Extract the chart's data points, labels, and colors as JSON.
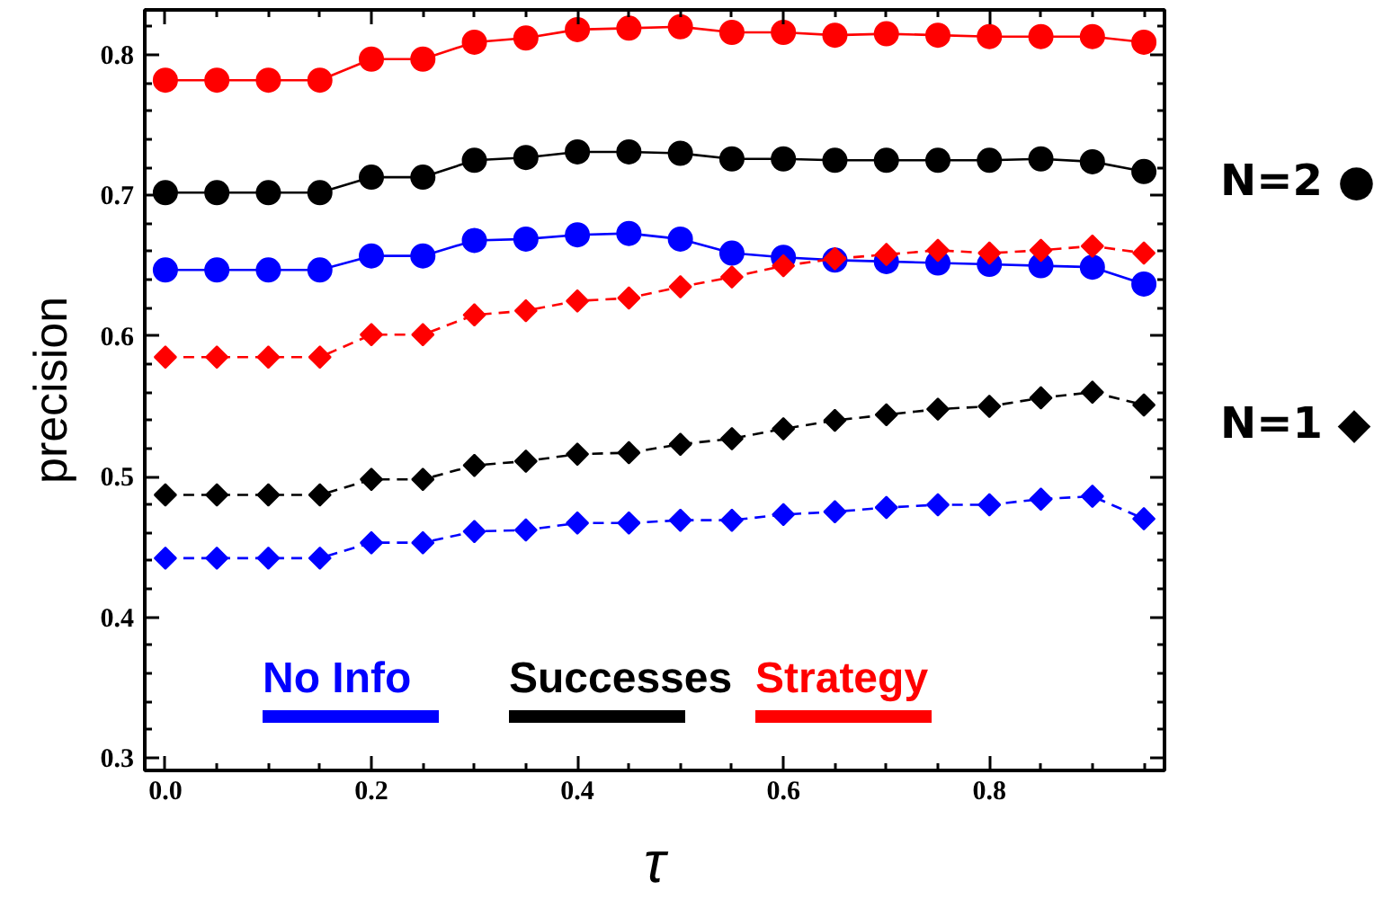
{
  "chart_data": {
    "type": "line",
    "xlabel": "τ",
    "ylabel": "precision",
    "x": [
      0,
      0.05,
      0.1,
      0.15,
      0.2,
      0.25,
      0.3,
      0.35,
      0.4,
      0.45,
      0.5,
      0.55,
      0.6,
      0.65,
      0.7,
      0.75,
      0.8,
      0.85,
      0.9,
      0.95
    ],
    "xlim": [
      -0.02,
      0.97
    ],
    "ylim": [
      0.291,
      0.832
    ],
    "xticks": [
      {
        "value": 0,
        "label": "0.0"
      },
      {
        "value": 0.05,
        "label": null
      },
      {
        "value": 0.1,
        "label": null
      },
      {
        "value": 0.15,
        "label": null
      },
      0.2,
      {
        "value": 0.25,
        "label": null
      },
      {
        "value": 0.3,
        "label": null
      },
      {
        "value": 0.35,
        "label": null
      },
      0.4,
      {
        "value": 0.45,
        "label": null
      },
      {
        "value": 0.5,
        "label": null
      },
      {
        "value": 0.55,
        "label": null
      },
      0.6,
      {
        "value": 0.65,
        "label": null
      },
      {
        "value": 0.7,
        "label": null
      },
      {
        "value": 0.75,
        "label": null
      },
      0.8,
      {
        "value": 0.85,
        "label": null
      },
      {
        "value": 0.9,
        "label": null
      },
      {
        "value": 0.95,
        "label": null
      }
    ],
    "yticks": [
      0.3,
      {
        "value": 0.32,
        "label": null
      },
      {
        "value": 0.34,
        "label": null
      },
      {
        "value": 0.36,
        "label": null
      },
      {
        "value": 0.38,
        "label": null
      },
      0.4,
      {
        "value": 0.42,
        "label": null
      },
      {
        "value": 0.44,
        "label": null
      },
      {
        "value": 0.46,
        "label": null
      },
      {
        "value": 0.48,
        "label": null
      },
      0.5,
      {
        "value": 0.52,
        "label": null
      },
      {
        "value": 0.54,
        "label": null
      },
      {
        "value": 0.56,
        "label": null
      },
      {
        "value": 0.58,
        "label": null
      },
      0.6,
      {
        "value": 0.62,
        "label": null
      },
      {
        "value": 0.64,
        "label": null
      },
      {
        "value": 0.66,
        "label": null
      },
      {
        "value": 0.68,
        "label": null
      },
      0.7,
      {
        "value": 0.72,
        "label": null
      },
      {
        "value": 0.74,
        "label": null
      },
      {
        "value": 0.76,
        "label": null
      },
      {
        "value": 0.78,
        "label": null
      },
      0.8,
      {
        "value": 0.82,
        "label": null
      }
    ],
    "legend": "bottom",
    "series": [
      {
        "name": "No Info",
        "color": "#0000ff",
        "marker": "circle",
        "line_style": "solid",
        "values": [
          0.647,
          0.647,
          0.647,
          0.647,
          0.657,
          0.657,
          0.668,
          0.669,
          0.672,
          0.673,
          0.669,
          0.659,
          0.656,
          0.654,
          0.653,
          0.652,
          0.651,
          0.65,
          0.649,
          0.637
        ]
      },
      {
        "name": "Successes",
        "color": "#000000",
        "marker": "circle",
        "line_style": "solid",
        "values": [
          0.702,
          0.702,
          0.702,
          0.702,
          0.713,
          0.713,
          0.725,
          0.727,
          0.731,
          0.731,
          0.73,
          0.726,
          0.726,
          0.725,
          0.725,
          0.725,
          0.725,
          0.726,
          0.724,
          0.717
        ]
      },
      {
        "name": "Strategy",
        "color": "#ff0000",
        "marker": "circle",
        "line_style": "solid",
        "values": [
          0.782,
          0.782,
          0.782,
          0.782,
          0.797,
          0.797,
          0.809,
          0.812,
          0.818,
          0.819,
          0.82,
          0.816,
          0.816,
          0.814,
          0.815,
          0.814,
          0.813,
          0.813,
          0.813,
          0.809
        ]
      },
      {
        "color": "#0000ff",
        "marker": "diamond",
        "line_style": "dashed",
        "values": [
          0.442,
          0.442,
          0.442,
          0.442,
          0.453,
          0.453,
          0.461,
          0.462,
          0.467,
          0.467,
          0.469,
          0.469,
          0.473,
          0.475,
          0.478,
          0.48,
          0.48,
          0.484,
          0.486,
          0.47
        ]
      },
      {
        "color": "#000000",
        "marker": "diamond",
        "line_style": "dashed",
        "values": [
          0.487,
          0.487,
          0.487,
          0.487,
          0.498,
          0.498,
          0.508,
          0.511,
          0.516,
          0.517,
          0.523,
          0.527,
          0.534,
          0.54,
          0.544,
          0.548,
          0.55,
          0.556,
          0.56,
          0.551
        ]
      },
      {
        "color": "#ff0000",
        "marker": "diamond",
        "line_style": "dashed",
        "values": [
          0.585,
          0.585,
          0.585,
          0.585,
          0.601,
          0.601,
          0.615,
          0.618,
          0.625,
          0.627,
          0.635,
          0.642,
          0.65,
          0.655,
          0.658,
          0.661,
          0.659,
          0.661,
          0.664,
          0.659
        ]
      }
    ],
    "annotations": [
      "N=2 ●",
      "N=1 ◆"
    ]
  }
}
